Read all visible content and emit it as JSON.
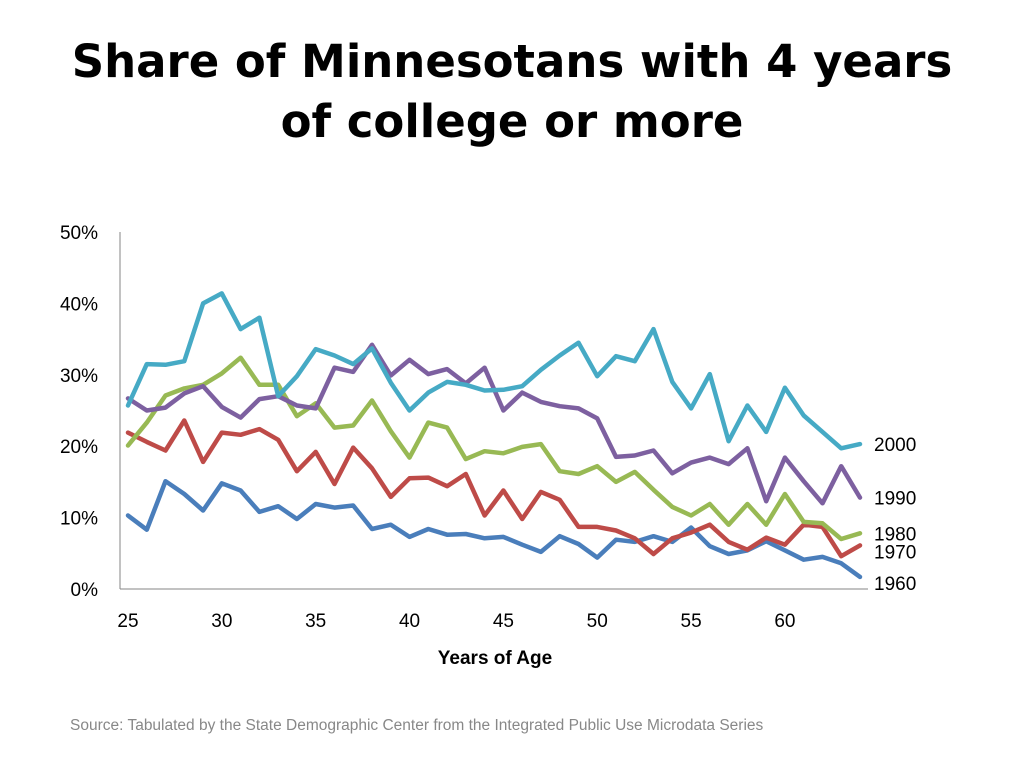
{
  "slide": {
    "title": "Share of Minnesotans with 4 years of college or more",
    "source": "Source: Tabulated by the State Demographic Center from the Integrated Public Use Microdata Series"
  },
  "chart_data": {
    "type": "line",
    "title": "Share of Minnesotans with 4 years of college or more",
    "xlabel": "Years of Age",
    "ylabel": "",
    "xlim": [
      25,
      64
    ],
    "ylim": [
      0,
      50
    ],
    "x_ticks": [
      "25",
      "30",
      "35",
      "40",
      "45",
      "50",
      "55",
      "60"
    ],
    "y_ticks": [
      "0%",
      "10%",
      "20%",
      "30%",
      "40%",
      "50%"
    ],
    "grid": false,
    "legend": "series labels at right end of lines",
    "x": [
      25,
      26,
      27,
      28,
      29,
      30,
      31,
      32,
      33,
      34,
      35,
      36,
      37,
      38,
      39,
      40,
      41,
      42,
      43,
      44,
      45,
      46,
      47,
      48,
      49,
      50,
      51,
      52,
      53,
      54,
      55,
      56,
      57,
      58,
      59,
      60,
      61,
      62,
      63,
      64
    ],
    "series": [
      {
        "name": "1960",
        "color": "#4a7ebb",
        "values": [
          10.3,
          8.3,
          15.1,
          13.3,
          11.0,
          14.8,
          13.8,
          10.8,
          11.6,
          9.8,
          11.9,
          11.4,
          11.7,
          8.4,
          9.0,
          7.3,
          8.4,
          7.6,
          7.7,
          7.1,
          7.3,
          6.2,
          5.2,
          7.4,
          6.3,
          4.4,
          6.9,
          6.6,
          7.4,
          6.6,
          8.6,
          6.0,
          4.9,
          5.4,
          6.7,
          5.4,
          4.1,
          4.5,
          3.6,
          1.7
        ]
      },
      {
        "name": "1970",
        "color": "#be4b48",
        "values": [
          21.9,
          20.6,
          19.4,
          23.6,
          17.8,
          21.9,
          21.6,
          22.4,
          20.9,
          16.5,
          19.2,
          14.7,
          19.8,
          16.9,
          12.9,
          15.5,
          15.6,
          14.4,
          16.1,
          10.3,
          13.8,
          9.8,
          13.6,
          12.5,
          8.7,
          8.7,
          8.2,
          7.1,
          4.9,
          7.1,
          7.9,
          9.0,
          6.6,
          5.5,
          7.2,
          6.2,
          9.0,
          8.7,
          4.6,
          6.1
        ]
      },
      {
        "name": "1980",
        "color": "#98b954",
        "values": [
          20.1,
          23.3,
          27.1,
          28.1,
          28.6,
          30.2,
          32.4,
          28.6,
          28.6,
          24.2,
          26.0,
          22.6,
          22.9,
          26.4,
          22.1,
          18.4,
          23.3,
          22.6,
          18.2,
          19.3,
          19.0,
          19.9,
          20.3,
          16.5,
          16.1,
          17.2,
          15.0,
          16.4,
          13.9,
          11.5,
          10.3,
          11.9,
          9.0,
          11.9,
          9.0,
          13.3,
          9.4,
          9.2,
          7.0,
          7.8
        ]
      },
      {
        "name": "1990",
        "color": "#7d60a0",
        "values": [
          26.7,
          25.0,
          25.4,
          27.4,
          28.4,
          25.5,
          24.0,
          26.6,
          27.0,
          25.7,
          25.3,
          31.0,
          30.4,
          34.2,
          29.9,
          32.1,
          30.1,
          30.8,
          28.8,
          31.0,
          25.0,
          27.5,
          26.2,
          25.6,
          25.3,
          23.9,
          18.5,
          18.7,
          19.4,
          16.2,
          17.7,
          18.4,
          17.5,
          19.7,
          12.3,
          18.4,
          15.1,
          12.0,
          17.2,
          12.8
        ]
      },
      {
        "name": "2000",
        "color": "#46aac5",
        "values": [
          25.7,
          31.5,
          31.4,
          31.9,
          40.0,
          41.4,
          36.4,
          38.0,
          27.0,
          29.8,
          33.6,
          32.7,
          31.5,
          33.7,
          28.9,
          25.0,
          27.5,
          29.0,
          28.6,
          27.8,
          27.9,
          28.4,
          30.7,
          32.7,
          34.5,
          29.8,
          32.6,
          31.9,
          36.4,
          29.0,
          25.3,
          30.1,
          20.7,
          25.7,
          22.0,
          28.2,
          24.3,
          22.0,
          19.7,
          20.3
        ]
      }
    ]
  }
}
